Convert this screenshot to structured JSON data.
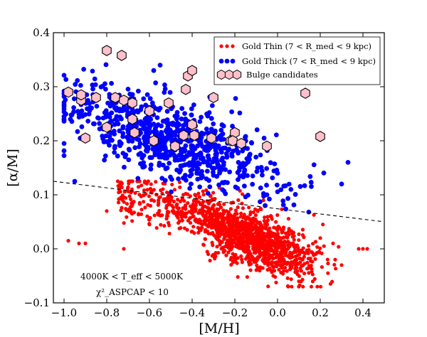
{
  "chart_data": {
    "type": "scatter",
    "xlabel": "[M/H]",
    "ylabel": "[α/M]",
    "xlim": [
      -1.05,
      0.5
    ],
    "ylim": [
      -0.1,
      0.4
    ],
    "x_ticks": [
      -1.0,
      -0.8,
      -0.6,
      -0.4,
      -0.2,
      0.0,
      0.2,
      0.4
    ],
    "x_tick_labels": [
      "−1.0",
      "−0.8",
      "−0.6",
      "−0.4",
      "−0.2",
      "0.0",
      "0.2",
      "0.4"
    ],
    "y_ticks": [
      -0.1,
      0.0,
      0.1,
      0.2,
      0.3,
      0.4
    ],
    "y_tick_labels": [
      "−0.1",
      "0.0",
      "0.1",
      "0.2",
      "0.3",
      "0.4"
    ],
    "legend_position": "top-right",
    "legend": [
      {
        "label": "Gold Thin (7 < R_med < 9 kpc)",
        "color": "#ff0000",
        "marker": "circle"
      },
      {
        "label": "Gold Thick (7 < R_med < 9 kpc)",
        "color": "#0000ff",
        "marker": "circle"
      },
      {
        "label": "Bulge candidates",
        "color": "#ffc0cb",
        "marker": "hexagon"
      }
    ],
    "annotations": [
      "4000K < T_eff < 5000K",
      "χ²_ASPCAP < 10"
    ],
    "divider_line": {
      "style": "dashed",
      "x": [
        -1.05,
        0.5
      ],
      "y": [
        0.125,
        0.05
      ]
    },
    "series": [
      {
        "name": "Gold Thin (7 < R_med < 9 kpc)",
        "color": "#ff0000",
        "distribution": {
          "count": 1400,
          "seed": 11,
          "main_clump": {
            "fraction": 0.8,
            "x_mean": -0.12,
            "x_sd": 0.14,
            "slope": -0.15,
            "y_at_mean": 0.02,
            "y_sd": 0.025
          },
          "metal_poor_tail": {
            "fraction": 0.2,
            "x_range": [
              -0.75,
              -0.25
            ],
            "slope": -0.1,
            "y_at_minus_0_5": 0.08,
            "y_sd": 0.025
          },
          "x_clip": [
            -1.0,
            0.42
          ],
          "y_clip": [
            -0.07,
            0.125
          ]
        },
        "points": [
          [
            -0.9,
            0.01
          ],
          [
            -0.93,
            0.01
          ],
          [
            -0.98,
            0.015
          ],
          [
            -0.8,
            0.07
          ],
          [
            -0.72,
            0.0
          ],
          [
            -0.6,
            0.045
          ],
          [
            0.3,
            -0.03
          ],
          [
            0.38,
            0.0
          ],
          [
            0.4,
            0.0
          ],
          [
            0.42,
            0.0
          ],
          [
            0.05,
            -0.07
          ],
          [
            -0.02,
            -0.05
          ],
          [
            0.1,
            -0.06
          ],
          [
            0.2,
            0.02
          ],
          [
            0.26,
            0.01
          ],
          [
            0.27,
            -0.02
          ]
        ]
      },
      {
        "name": "Gold Thick (7 < R_med < 9 kpc)",
        "color": "#0000ff",
        "distribution": {
          "count": 780,
          "seed": 23,
          "x_mean": -0.5,
          "x_sd": 0.24,
          "slope": -0.12,
          "y_at_minus_0_5": 0.2,
          "y_sd": 0.035,
          "x_clip": [
            -1.0,
            0.35
          ],
          "y_floor_at": {
            "x": [
              -1.05,
              0.5
            ],
            "y": [
              0.125,
              0.05
            ]
          },
          "y_clip_max": 0.345
        },
        "points": [
          [
            -1.0,
            0.245
          ],
          [
            -0.97,
            0.24
          ],
          [
            -0.95,
            0.125
          ],
          [
            -0.55,
            0.34
          ],
          [
            -0.58,
            0.33
          ],
          [
            0.33,
            0.16
          ],
          [
            0.3,
            0.12
          ],
          [
            0.0,
            0.14
          ],
          [
            -0.05,
            0.1
          ]
        ]
      },
      {
        "name": "Bulge candidates",
        "color": "#ffc0cb",
        "points": [
          [
            -0.98,
            0.29
          ],
          [
            -0.92,
            0.275
          ],
          [
            -0.92,
            0.285
          ],
          [
            -0.85,
            0.28
          ],
          [
            -0.9,
            0.205
          ],
          [
            -0.8,
            0.367
          ],
          [
            -0.73,
            0.358
          ],
          [
            -0.76,
            0.28
          ],
          [
            -0.72,
            0.275
          ],
          [
            -0.8,
            0.225
          ],
          [
            -0.68,
            0.27
          ],
          [
            -0.68,
            0.24
          ],
          [
            -0.67,
            0.215
          ],
          [
            -0.6,
            0.255
          ],
          [
            -0.58,
            0.2
          ],
          [
            -0.51,
            0.27
          ],
          [
            -0.48,
            0.19
          ],
          [
            -0.43,
            0.295
          ],
          [
            -0.42,
            0.32
          ],
          [
            -0.4,
            0.33
          ],
          [
            -0.44,
            0.21
          ],
          [
            -0.4,
            0.23
          ],
          [
            -0.39,
            0.21
          ],
          [
            -0.3,
            0.28
          ],
          [
            -0.31,
            0.205
          ],
          [
            -0.22,
            0.2
          ],
          [
            -0.2,
            0.215
          ],
          [
            -0.21,
            0.2
          ],
          [
            -0.17,
            0.195
          ],
          [
            -0.05,
            0.19
          ],
          [
            0.13,
            0.288
          ],
          [
            0.2,
            0.208
          ]
        ]
      }
    ]
  }
}
